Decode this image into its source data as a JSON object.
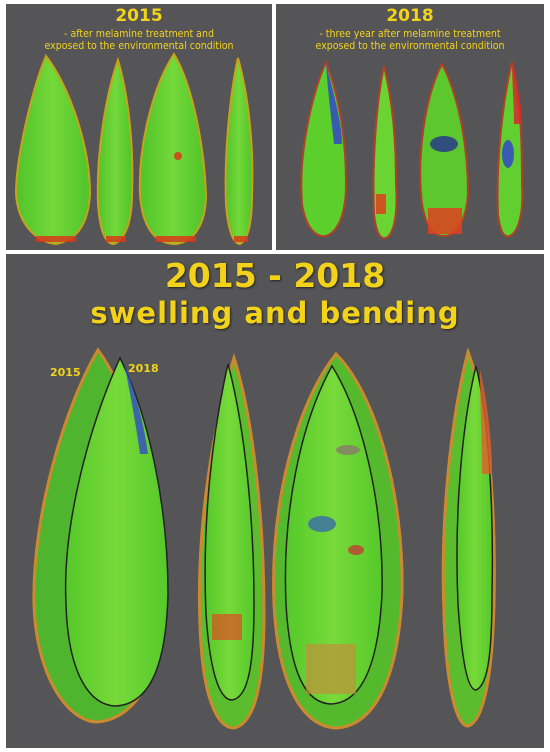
{
  "panel_2015": {
    "title": "2015",
    "subtitle_line1": "- after melamine treatment and",
    "subtitle_line2": "exposed to the environmental condition"
  },
  "panel_2018": {
    "title": "2018",
    "subtitle_line1": "- three year after melamine treatment",
    "subtitle_line2": "exposed to the environmental condition"
  },
  "panel_comparison": {
    "title": "2015 - 2018",
    "subtitle": "swelling and bending",
    "label_2015": "2015",
    "label_2018": "2018"
  },
  "colors": {
    "background": "#555557",
    "text_yellow": "#f2d21b",
    "leaf_green": "#5fd12e",
    "edge_red": "#d83a1a",
    "deformation_blue": "#3348c8"
  }
}
